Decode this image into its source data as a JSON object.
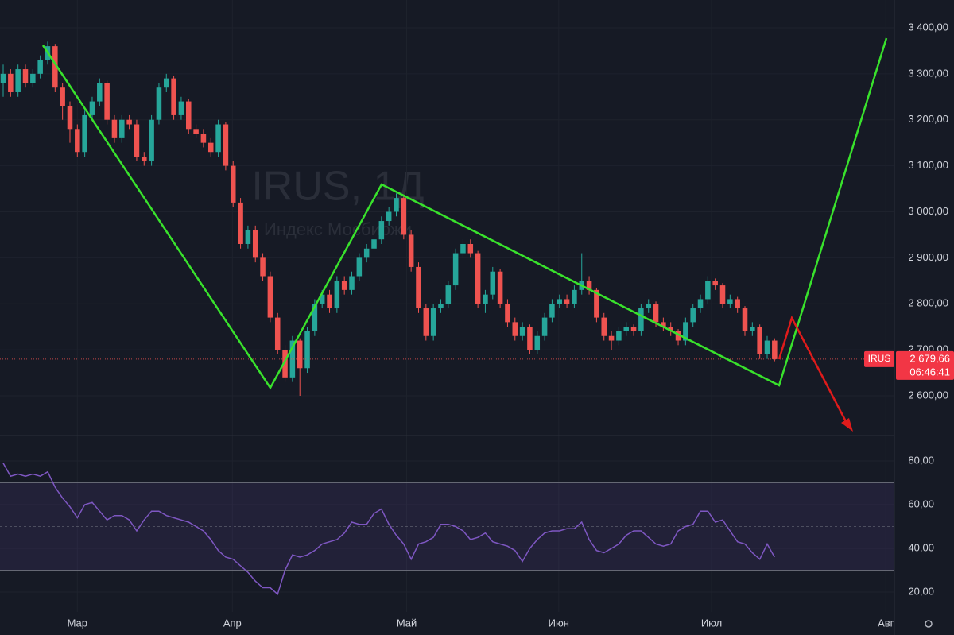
{
  "chart_data": [
    {
      "type": "candlestick",
      "watermark": "IRUS, 1Д",
      "watermark_sub": "Индекс Мосбиржи",
      "symbol": "IRUS",
      "timer": "06:46:41",
      "last_price": {
        "value": 2679.66,
        "label": "2 679,66"
      },
      "up_color": "#26a69a",
      "down_color": "#ef5350",
      "xlim": [
        -0.43,
        120.15
      ],
      "xticks": [
        {
          "value": 10,
          "label": "Мар"
        },
        {
          "value": 30.9,
          "label": "Апр"
        },
        {
          "value": 54.4,
          "label": "Май"
        },
        {
          "value": 74.9,
          "label": "Июн"
        },
        {
          "value": 95.5,
          "label": "Июл"
        },
        {
          "value": 119,
          "label": "Авг"
        }
      ],
      "ylim": [
        2513.6,
        3460.4
      ],
      "yticks": [
        {
          "value": 2600,
          "label": "2 600,00"
        },
        {
          "value": 2700,
          "label": "2 700,00"
        },
        {
          "value": 2800,
          "label": "2 800,00"
        },
        {
          "value": 2900,
          "label": "2 900,00"
        },
        {
          "value": 3000,
          "label": "3 000,00"
        },
        {
          "value": 3100,
          "label": "3 100,00"
        },
        {
          "value": 3200,
          "label": "3 200,00"
        },
        {
          "value": 3300,
          "label": "3 300,00"
        },
        {
          "value": 3400,
          "label": "3 400,00"
        }
      ],
      "ohlc": [
        [
          3280,
          3320,
          3250,
          3300
        ],
        [
          3300,
          3310,
          3250,
          3260
        ],
        [
          3260,
          3320,
          3250,
          3310
        ],
        [
          3310,
          3320,
          3270,
          3280
        ],
        [
          3280,
          3310,
          3270,
          3300
        ],
        [
          3300,
          3340,
          3290,
          3330
        ],
        [
          3330,
          3370,
          3320,
          3360
        ],
        [
          3360,
          3365,
          3260,
          3270
        ],
        [
          3270,
          3280,
          3200,
          3230
        ],
        [
          3230,
          3240,
          3150,
          3180
        ],
        [
          3180,
          3190,
          3120,
          3130
        ],
        [
          3130,
          3220,
          3120,
          3210
        ],
        [
          3210,
          3250,
          3200,
          3240
        ],
        [
          3240,
          3290,
          3230,
          3280
        ],
        [
          3280,
          3285,
          3190,
          3200
        ],
        [
          3200,
          3210,
          3150,
          3160
        ],
        [
          3160,
          3210,
          3150,
          3200
        ],
        [
          3200,
          3210,
          3180,
          3190
        ],
        [
          3190,
          3200,
          3110,
          3120
        ],
        [
          3120,
          3130,
          3100,
          3110
        ],
        [
          3110,
          3210,
          3100,
          3200
        ],
        [
          3200,
          3280,
          3190,
          3270
        ],
        [
          3270,
          3300,
          3260,
          3290
        ],
        [
          3290,
          3295,
          3200,
          3210
        ],
        [
          3210,
          3250,
          3200,
          3240
        ],
        [
          3240,
          3245,
          3170,
          3180
        ],
        [
          3180,
          3190,
          3160,
          3170
        ],
        [
          3170,
          3180,
          3140,
          3150
        ],
        [
          3150,
          3160,
          3120,
          3130
        ],
        [
          3130,
          3200,
          3120,
          3190
        ],
        [
          3190,
          3195,
          3090,
          3100
        ],
        [
          3100,
          3110,
          3010,
          3020
        ],
        [
          3020,
          3030,
          2920,
          2930
        ],
        [
          2930,
          2970,
          2920,
          2960
        ],
        [
          2960,
          2970,
          2890,
          2900
        ],
        [
          2900,
          2910,
          2850,
          2860
        ],
        [
          2860,
          2870,
          2760,
          2770
        ],
        [
          2770,
          2780,
          2690,
          2700
        ],
        [
          2700,
          2710,
          2630,
          2640
        ],
        [
          2640,
          2730,
          2630,
          2720
        ],
        [
          2720,
          2725,
          2600,
          2660
        ],
        [
          2660,
          2750,
          2650,
          2740
        ],
        [
          2740,
          2810,
          2730,
          2800
        ],
        [
          2800,
          2830,
          2790,
          2820
        ],
        [
          2820,
          2830,
          2780,
          2790
        ],
        [
          2790,
          2860,
          2780,
          2850
        ],
        [
          2850,
          2860,
          2820,
          2830
        ],
        [
          2830,
          2870,
          2820,
          2860
        ],
        [
          2860,
          2910,
          2850,
          2900
        ],
        [
          2900,
          2930,
          2890,
          2920
        ],
        [
          2920,
          2950,
          2910,
          2940
        ],
        [
          2940,
          2990,
          2930,
          2980
        ],
        [
          2980,
          3010,
          2970,
          3000
        ],
        [
          3000,
          3040,
          2990,
          3030
        ],
        [
          3030,
          3035,
          2940,
          2950
        ],
        [
          2950,
          2960,
          2870,
          2880
        ],
        [
          2880,
          2890,
          2780,
          2790
        ],
        [
          2790,
          2800,
          2720,
          2730
        ],
        [
          2730,
          2800,
          2720,
          2790
        ],
        [
          2790,
          2810,
          2780,
          2800
        ],
        [
          2800,
          2850,
          2790,
          2840
        ],
        [
          2840,
          2920,
          2830,
          2910
        ],
        [
          2910,
          2940,
          2900,
          2930
        ],
        [
          2930,
          2940,
          2900,
          2910
        ],
        [
          2910,
          2915,
          2790,
          2800
        ],
        [
          2800,
          2830,
          2780,
          2820
        ],
        [
          2820,
          2880,
          2810,
          2870
        ],
        [
          2870,
          2875,
          2790,
          2800
        ],
        [
          2800,
          2810,
          2750,
          2760
        ],
        [
          2760,
          2770,
          2720,
          2730
        ],
        [
          2730,
          2760,
          2720,
          2750
        ],
        [
          2750,
          2755,
          2690,
          2700
        ],
        [
          2700,
          2740,
          2690,
          2730
        ],
        [
          2730,
          2780,
          2720,
          2770
        ],
        [
          2770,
          2810,
          2760,
          2800
        ],
        [
          2800,
          2820,
          2790,
          2810
        ],
        [
          2810,
          2820,
          2790,
          2800
        ],
        [
          2800,
          2840,
          2790,
          2830
        ],
        [
          2830,
          2910,
          2820,
          2850
        ],
        [
          2850,
          2860,
          2820,
          2830
        ],
        [
          2830,
          2835,
          2760,
          2770
        ],
        [
          2770,
          2780,
          2720,
          2730
        ],
        [
          2730,
          2740,
          2700,
          2720
        ],
        [
          2720,
          2750,
          2710,
          2740
        ],
        [
          2740,
          2760,
          2730,
          2750
        ],
        [
          2750,
          2755,
          2730,
          2740
        ],
        [
          2740,
          2800,
          2730,
          2790
        ],
        [
          2790,
          2810,
          2780,
          2800
        ],
        [
          2800,
          2805,
          2750,
          2760
        ],
        [
          2760,
          2770,
          2740,
          2750
        ],
        [
          2750,
          2760,
          2730,
          2740
        ],
        [
          2740,
          2745,
          2710,
          2720
        ],
        [
          2720,
          2770,
          2710,
          2760
        ],
        [
          2760,
          2800,
          2750,
          2790
        ],
        [
          2790,
          2820,
          2780,
          2810
        ],
        [
          2810,
          2860,
          2800,
          2850
        ],
        [
          2850,
          2855,
          2830,
          2840
        ],
        [
          2840,
          2845,
          2790,
          2800
        ],
        [
          2800,
          2820,
          2790,
          2810
        ],
        [
          2810,
          2815,
          2780,
          2790
        ],
        [
          2790,
          2795,
          2730,
          2740
        ],
        [
          2740,
          2760,
          2730,
          2750
        ],
        [
          2750,
          2755,
          2680,
          2690
        ],
        [
          2690,
          2730,
          2680,
          2720
        ],
        [
          2720,
          2725,
          2675,
          2679.66
        ]
      ]
    },
    {
      "type": "line",
      "color": "#7e57c2",
      "ylim": [
        10.9,
        90.9
      ],
      "yticks": [
        {
          "value": 20,
          "label": "20,00"
        },
        {
          "value": 40,
          "label": "40,00"
        },
        {
          "value": 60,
          "label": "60,00"
        },
        {
          "value": 80,
          "label": "80,00"
        }
      ],
      "levels": [
        70,
        50,
        30
      ],
      "values": [
        79,
        73,
        74,
        73,
        74,
        73,
        75,
        68,
        63,
        59,
        54,
        60,
        61,
        57,
        53,
        55,
        55,
        53,
        48,
        53,
        57,
        57,
        55,
        54,
        53,
        52,
        50,
        48,
        44,
        39,
        36,
        35,
        32,
        29,
        25,
        22,
        22,
        19,
        30,
        37,
        36,
        37,
        39,
        42,
        43,
        44,
        47,
        52,
        51,
        51,
        56,
        58,
        51,
        46,
        42,
        35,
        42,
        43,
        45,
        51,
        51,
        50,
        48,
        44,
        45,
        47,
        43,
        42,
        41,
        39,
        34,
        40,
        44,
        47,
        48,
        48,
        49,
        49,
        52,
        44,
        39,
        38,
        40,
        42,
        46,
        48,
        48,
        45,
        42,
        41,
        42,
        48,
        50,
        51,
        57,
        57,
        52,
        53,
        48,
        43,
        42,
        38,
        35,
        42,
        36
      ]
    }
  ]
}
